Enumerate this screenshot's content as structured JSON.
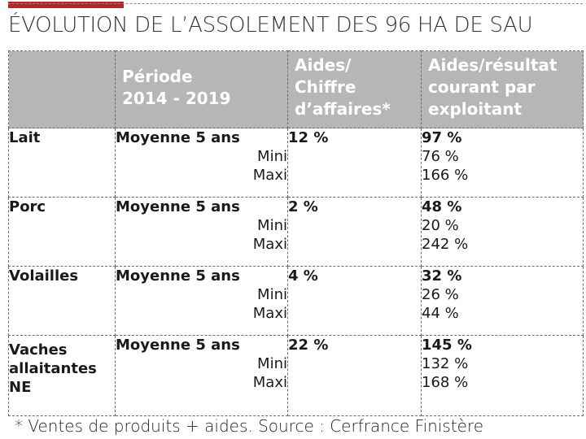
{
  "title": "ÉVOLUTION DE L’ASSOLEMENT DES 96 HA DE SAU",
  "accent_color": "#b3262b",
  "header_bg": "#b6b6b6",
  "headers": {
    "product": "",
    "periode_line1": "Période",
    "periode_line2": "2014 - 2019",
    "aides_line1": "Aides/",
    "aides_line2": "Chiffre",
    "aides_line3": "d’affaires*",
    "res_line1": "Aides/résultat",
    "res_line2": "courant par",
    "res_line3": "exploitant"
  },
  "rows": [
    {
      "product": "Lait",
      "mean_label": "Moyenne 5 ans",
      "min_label": "Mini",
      "max_label": "Maxi",
      "aides_ca": "12 %",
      "res_mean": "97 %",
      "res_min": "76 %",
      "res_max": "166 %"
    },
    {
      "product": "Porc",
      "mean_label": "Moyenne 5 ans",
      "min_label": "Mini",
      "max_label": "Maxi",
      "aides_ca": "2 %",
      "res_mean": "48 %",
      "res_min": "20 %",
      "res_max": "242 %"
    },
    {
      "product": "Volailles",
      "mean_label": "Moyenne 5 ans",
      "min_label": "Mini",
      "max_label": "Maxi",
      "aides_ca": "4 %",
      "res_mean": "32 %",
      "res_min": "26 %",
      "res_max": "44 %"
    },
    {
      "product_line1": "Vaches",
      "product_line2": "allaitantes",
      "product_line3": "NE",
      "mean_label": "Moyenne 5 ans",
      "min_label": "Mini",
      "max_label": "Maxi",
      "aides_ca": "22 %",
      "res_mean": "145 %",
      "res_min": "132 %",
      "res_max": "168 %"
    }
  ],
  "footnote": "* Ventes de produits + aides. Source : Cerfrance Finistère"
}
